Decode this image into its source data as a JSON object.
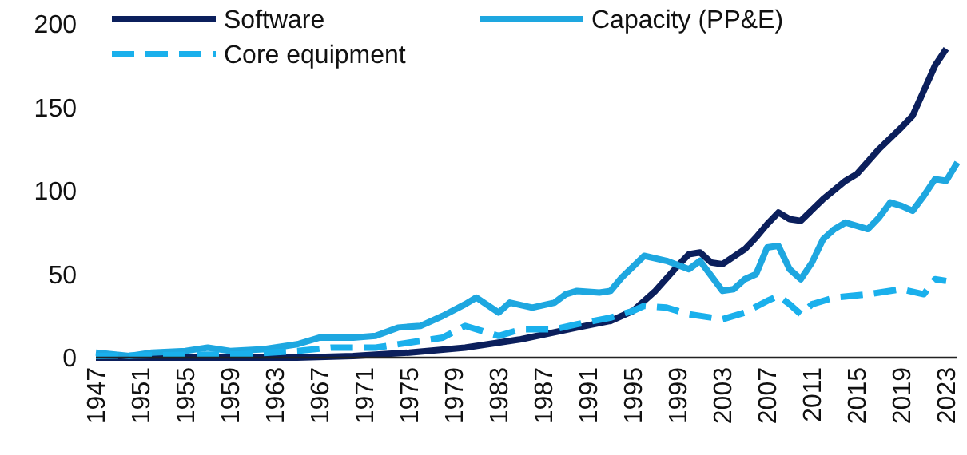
{
  "chart_data": {
    "type": "line",
    "legend": "top left",
    "grid": false,
    "ylim": [
      0,
      200
    ],
    "yticks": [
      0,
      50,
      100,
      150,
      200
    ],
    "xlim": [
      1947,
      2024
    ],
    "xticks": [
      1947,
      1951,
      1955,
      1959,
      1963,
      1967,
      1971,
      1975,
      1979,
      1983,
      1987,
      1991,
      1995,
      1999,
      2003,
      2007,
      2011,
      2015,
      2019,
      2023
    ],
    "series": [
      {
        "name": "Software",
        "color": "#0b1f5c",
        "line_style": "solid",
        "x": [
          1947,
          1955,
          1965,
          1970,
          1975,
          1980,
          1985,
          1990,
          1993,
          1995,
          1997,
          1999,
          2000,
          2001,
          2002,
          2003,
          2005,
          2006,
          2007,
          2008,
          2009,
          2010,
          2012,
          2014,
          2015,
          2017,
          2019,
          2020,
          2021,
          2022,
          2023
        ],
        "values": [
          0,
          0,
          0,
          1,
          3,
          6,
          11,
          18,
          22,
          28,
          40,
          55,
          62,
          63,
          57,
          56,
          65,
          72,
          80,
          87,
          83,
          82,
          95,
          106,
          110,
          125,
          138,
          145,
          160,
          175,
          185
        ]
      },
      {
        "name": "Capacity (PP&E)",
        "color": "#1ea7e0",
        "line_style": "solid",
        "x": [
          1947,
          1950,
          1952,
          1955,
          1957,
          1959,
          1962,
          1965,
          1967,
          1970,
          1972,
          1974,
          1976,
          1978,
          1980,
          1981,
          1983,
          1984,
          1986,
          1988,
          1989,
          1990,
          1992,
          1993,
          1994,
          1996,
          1998,
          2000,
          2001,
          2003,
          2004,
          2005,
          2006,
          2007,
          2008,
          2009,
          2010,
          2011,
          2012,
          2013,
          2014,
          2016,
          2017,
          2018,
          2019,
          2020,
          2021,
          2022,
          2023,
          2024
        ],
        "values": [
          3,
          1,
          3,
          4,
          6,
          4,
          5,
          8,
          12,
          12,
          13,
          18,
          19,
          25,
          32,
          36,
          27,
          33,
          30,
          33,
          38,
          40,
          39,
          40,
          48,
          61,
          58,
          53,
          58,
          40,
          41,
          47,
          50,
          66,
          67,
          53,
          47,
          57,
          71,
          77,
          81,
          77,
          84,
          93,
          91,
          88,
          97,
          107,
          106,
          117
        ]
      },
      {
        "name": "Core equipment",
        "color": "#1ab0ec",
        "line_style": "dashed",
        "x": [
          1947,
          1960,
          1965,
          1968,
          1972,
          1975,
          1978,
          1980,
          1983,
          1985,
          1988,
          1990,
          1993,
          1995,
          1996,
          1998,
          2000,
          2003,
          2005,
          2007,
          2008,
          2009,
          2010,
          2011,
          2013,
          2016,
          2019,
          2021,
          2022,
          2023
        ],
        "values": [
          1,
          2,
          4,
          6,
          6,
          9,
          12,
          19,
          13,
          17,
          17,
          20,
          24,
          28,
          31,
          30,
          26,
          23,
          27,
          34,
          37,
          32,
          26,
          32,
          36,
          38,
          41,
          38,
          47,
          46
        ]
      }
    ]
  }
}
